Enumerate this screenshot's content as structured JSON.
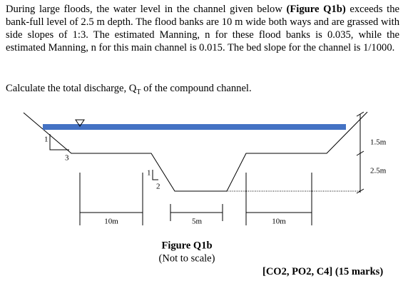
{
  "question": {
    "intro_before": "During large floods, the water level in the channel given below ",
    "figure_ref": "(Figure Q1b)",
    "intro_after": " exceeds the bank-full level of 2.5 m depth. The flood banks are 10 m wide both ways and are grassed with side slopes of 1:3. The estimated Manning, n for these flood banks is 0.035, while the estimated Manning, n for this main channel is 0.015. The bed slope for the channel is 1/1000.",
    "task_before": "Calculate the total discharge, Q",
    "task_sub": "T",
    "task_after": " of the compound channel."
  },
  "figure": {
    "labels": {
      "slope_bank_v": "1",
      "slope_bank_h": "3",
      "slope_main_v": "1",
      "slope_main_h": "2",
      "depth_flood": "1.5m",
      "depth_bank": "2.5m",
      "width_left": "10m",
      "width_main": "5m",
      "width_right": "10m"
    },
    "caption": "Figure Q1b",
    "note": "(Not to scale)"
  },
  "marks": "[CO2, PO2, C4] (15 marks)"
}
